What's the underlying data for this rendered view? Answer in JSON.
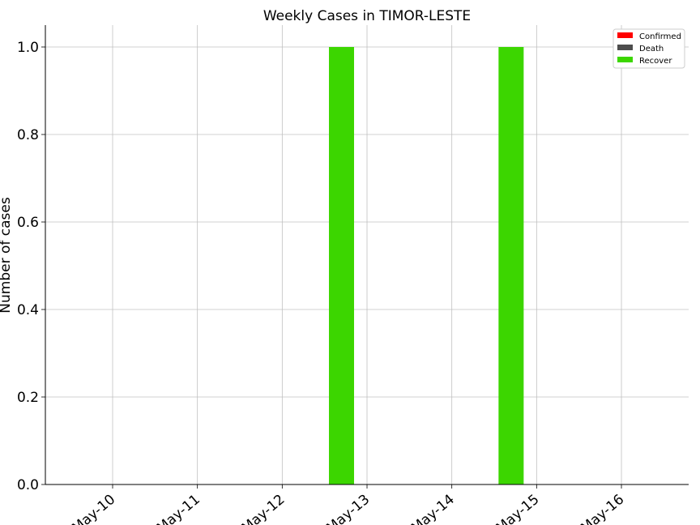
{
  "chart_data": {
    "type": "bar",
    "title": "Weekly Cases in TIMOR-LESTE",
    "xlabel": "",
    "ylabel": "Number of cases",
    "categories": [
      "May-10",
      "May-11",
      "May-12",
      "May-13",
      "May-14",
      "May-15",
      "May-16"
    ],
    "series": [
      {
        "name": "Confirmed",
        "color": "#ff0000",
        "values": [
          0,
          0,
          0,
          0,
          0,
          0,
          0
        ]
      },
      {
        "name": "Death",
        "color": "#4d4d4d",
        "values": [
          0,
          0,
          0,
          0,
          0,
          0,
          0
        ]
      },
      {
        "name": "Recover",
        "color": "#3cd600",
        "values": [
          0,
          0,
          0,
          1,
          0,
          1,
          0
        ]
      }
    ],
    "ylim": [
      0,
      1.05
    ],
    "yticks": [
      "0.0",
      "0.2",
      "0.4",
      "0.6",
      "0.8",
      "1.0"
    ],
    "grid": true,
    "legend": "top-right"
  }
}
